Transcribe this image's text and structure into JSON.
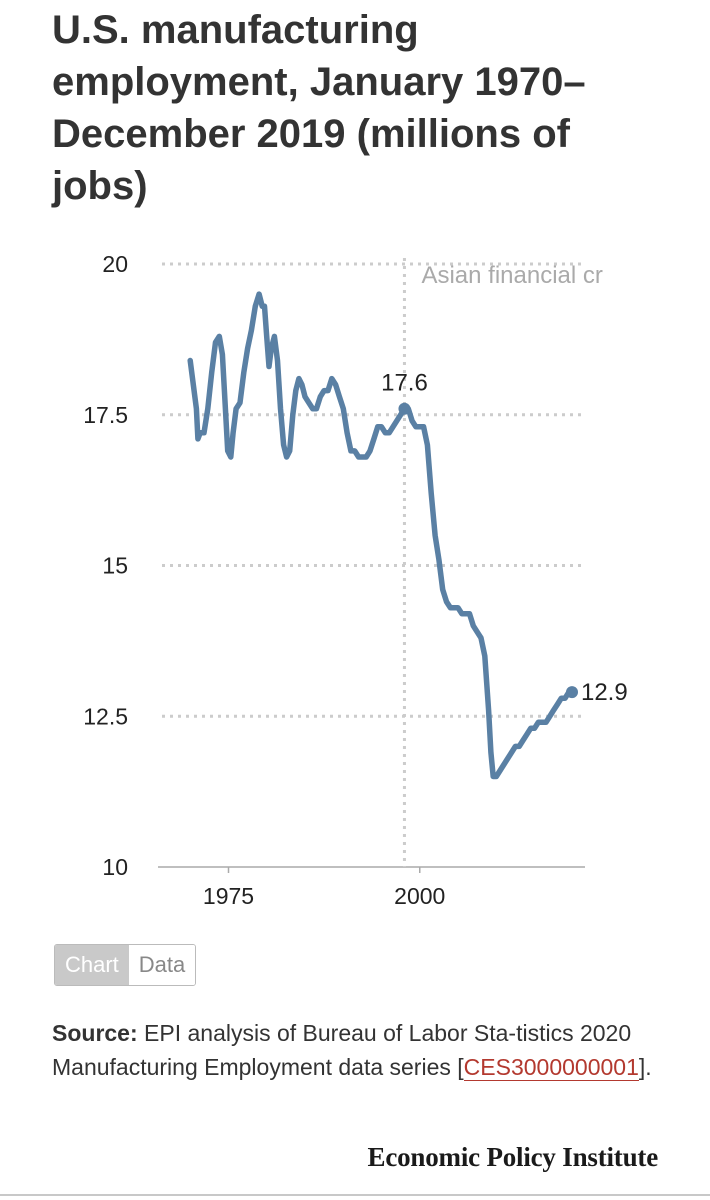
{
  "title": "U.S. manufacturing employment, January 1970–December 2019 (millions of jobs)",
  "toggle": {
    "chart_label": "Chart",
    "data_label": "Data",
    "active": "Chart"
  },
  "source": {
    "label": "Source:",
    "text": "EPI analysis of Bureau of Labor Sta-tistics 2020 Manufacturing Employment data series [",
    "link_text": "CES3000000001",
    "suffix": "]."
  },
  "brand": "Economic Policy Institute",
  "colors": {
    "line": "#5a80a4",
    "grid": "#cccccc",
    "annotation": "#aaaaaa",
    "link": "#b3392f"
  },
  "chart_data": {
    "type": "line",
    "ylim": [
      10,
      20
    ],
    "yticks": [
      {
        "value": 10,
        "label": "10"
      },
      {
        "value": 12.5,
        "label": "12.5"
      },
      {
        "value": 15,
        "label": "15"
      },
      {
        "value": 17.5,
        "label": "17.5"
      },
      {
        "value": 20,
        "label": "20"
      }
    ],
    "xlim": [
      1966.7,
      2021.6
    ],
    "xticks": [
      {
        "value": 1975,
        "label": "1975"
      },
      {
        "value": 2000,
        "label": "2000"
      }
    ],
    "grid": true,
    "annotation": {
      "x": 1998.0,
      "label": "Asian financial cr"
    },
    "labels": [
      {
        "x": 1998.0,
        "y": 17.6,
        "text": "17.6"
      },
      {
        "x": 2019.9,
        "y": 12.9,
        "text": "12.9"
      }
    ],
    "series": [
      {
        "x": [
          1970.0,
          1970.4,
          1970.8,
          1971.0,
          1971.3,
          1971.8,
          1972.3,
          1972.8,
          1973.3,
          1973.8,
          1974.2,
          1974.6,
          1974.9,
          1975.3,
          1975.6,
          1976.0,
          1976.5,
          1977.0,
          1977.5,
          1978.0,
          1978.5,
          1979.0,
          1979.4,
          1979.7,
          1980.0,
          1980.3,
          1980.6,
          1981.0,
          1981.4,
          1981.8,
          1982.2,
          1982.6,
          1983.0,
          1983.4,
          1983.8,
          1984.2,
          1984.6,
          1985.0,
          1985.5,
          1986.0,
          1986.5,
          1987.0,
          1987.5,
          1988.0,
          1988.5,
          1989.0,
          1989.5,
          1990.0,
          1990.5,
          1991.0,
          1991.5,
          1992.0,
          1992.5,
          1993.0,
          1993.5,
          1994.0,
          1994.5,
          1995.0,
          1995.5,
          1996.0,
          1996.5,
          1997.0,
          1997.5,
          1998.0,
          1998.5,
          1999.0,
          1999.5,
          2000.0,
          2000.5,
          2001.0,
          2001.5,
          2002.0,
          2002.5,
          2003.0,
          2003.5,
          2004.0,
          2004.5,
          2005.0,
          2005.5,
          2006.0,
          2006.5,
          2007.0,
          2007.5,
          2008.0,
          2008.5,
          2009.0,
          2009.3,
          2009.6,
          2010.0,
          2010.5,
          2011.0,
          2011.5,
          2012.0,
          2012.5,
          2013.0,
          2013.5,
          2014.0,
          2014.5,
          2015.0,
          2015.5,
          2016.0,
          2016.5,
          2017.0,
          2017.5,
          2018.0,
          2018.5,
          2019.0,
          2019.5,
          2019.9
        ],
        "y": [
          18.4,
          18.0,
          17.6,
          17.1,
          17.2,
          17.2,
          17.6,
          18.2,
          18.7,
          18.8,
          18.5,
          17.6,
          16.9,
          16.8,
          17.2,
          17.6,
          17.7,
          18.2,
          18.6,
          18.9,
          19.3,
          19.5,
          19.3,
          19.3,
          18.8,
          18.3,
          18.6,
          18.8,
          18.4,
          17.6,
          17.0,
          16.8,
          16.9,
          17.5,
          17.9,
          18.1,
          18.0,
          17.8,
          17.7,
          17.6,
          17.6,
          17.8,
          17.9,
          17.9,
          18.1,
          18.0,
          17.8,
          17.6,
          17.2,
          16.9,
          16.9,
          16.8,
          16.8,
          16.8,
          16.9,
          17.1,
          17.3,
          17.3,
          17.2,
          17.2,
          17.3,
          17.4,
          17.5,
          17.6,
          17.6,
          17.4,
          17.3,
          17.3,
          17.3,
          17.0,
          16.2,
          15.5,
          15.1,
          14.6,
          14.4,
          14.3,
          14.3,
          14.3,
          14.2,
          14.2,
          14.2,
          14.0,
          13.9,
          13.8,
          13.5,
          12.6,
          11.9,
          11.5,
          11.5,
          11.6,
          11.7,
          11.8,
          11.9,
          12.0,
          12.0,
          12.1,
          12.2,
          12.3,
          12.3,
          12.4,
          12.4,
          12.4,
          12.5,
          12.6,
          12.7,
          12.8,
          12.8,
          12.9,
          12.9
        ]
      }
    ]
  }
}
